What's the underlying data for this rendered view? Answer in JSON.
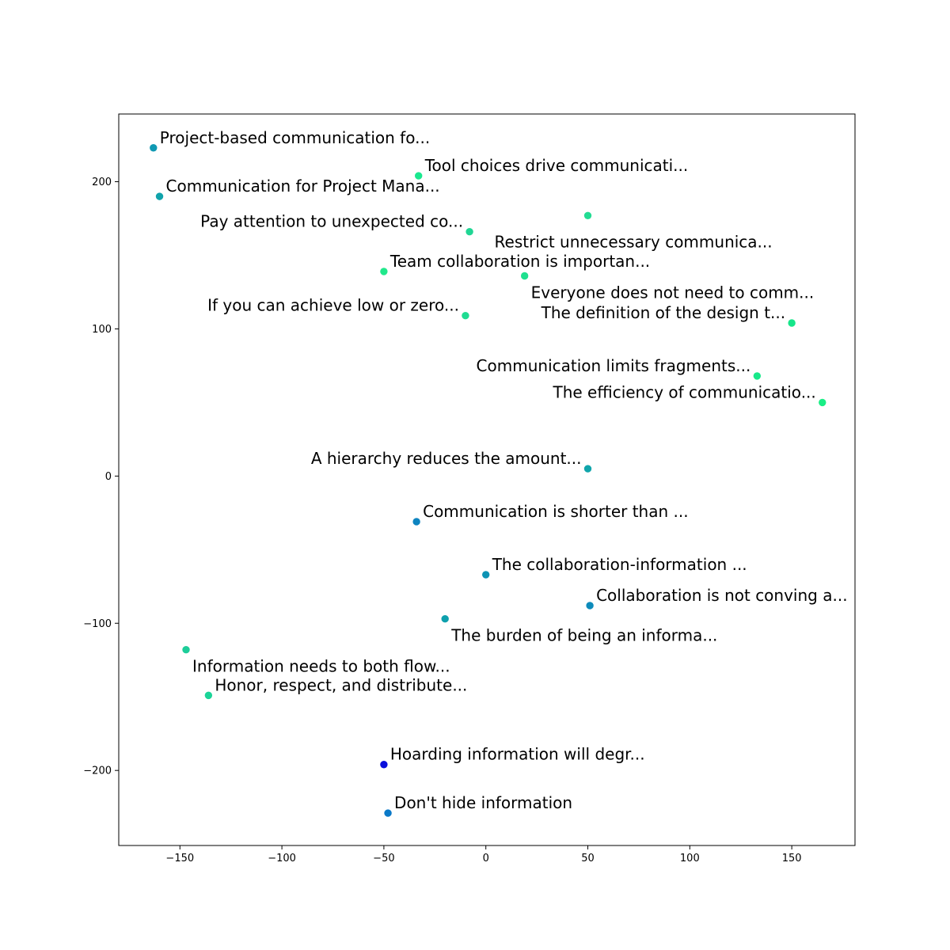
{
  "chart_data": {
    "type": "scatter",
    "title": "",
    "xlabel": "",
    "ylabel": "",
    "xlim": [
      -180,
      181
    ],
    "ylim": [
      -251,
      246
    ],
    "grid": false,
    "legend": "none",
    "x_ticks": [
      -150,
      -100,
      -50,
      0,
      50,
      100,
      150
    ],
    "y_ticks": [
      -200,
      -100,
      0,
      100,
      200
    ],
    "points": [
      {
        "x": -163,
        "y": 223,
        "label": "Project-based communication fo...",
        "color": "#1099b3",
        "label_side": "right"
      },
      {
        "x": -160,
        "y": 190,
        "label": "Communication for Project Mana...",
        "color": "#10a3ab",
        "label_side": "right"
      },
      {
        "x": -33,
        "y": 204,
        "label": "Tool choices drive communicati...",
        "color": "#1ae88f",
        "label_side": "right"
      },
      {
        "x": 50,
        "y": 177,
        "label": "Restrict unnecessary communica...",
        "color": "#23dc93",
        "label_side": "below-left"
      },
      {
        "x": -8,
        "y": 166,
        "label": "Pay attention to unexpected co...",
        "color": "#20d694",
        "label_side": "left"
      },
      {
        "x": -50,
        "y": 139,
        "label": "Team collaboration is importan...",
        "color": "#20e88b",
        "label_side": "right"
      },
      {
        "x": 19,
        "y": 136,
        "label": "Everyone does not need to comm...",
        "color": "#1fe08f",
        "label_side": "below-right"
      },
      {
        "x": -10,
        "y": 109,
        "label": "If you can achieve low or zero...",
        "color": "#1fdc92",
        "label_side": "left"
      },
      {
        "x": 150,
        "y": 104,
        "label": "The definition of the design t...",
        "color": "#16e68a",
        "label_side": "left"
      },
      {
        "x": 133,
        "y": 68,
        "label": "Communication limits fragments...",
        "color": "#18e88a",
        "label_side": "left"
      },
      {
        "x": 165,
        "y": 50,
        "label": "The efficiency of communicatio...",
        "color": "#1aee86",
        "label_side": "left"
      },
      {
        "x": 50,
        "y": 5,
        "label": "A hierarchy reduces the amount...",
        "color": "#10a5ab",
        "label_side": "left"
      },
      {
        "x": -34,
        "y": -31,
        "label": "Communication is shorter than ...",
        "color": "#0e84c0",
        "label_side": "right"
      },
      {
        "x": 0,
        "y": -67,
        "label": "The collaboration-information ...",
        "color": "#0e93b4",
        "label_side": "right"
      },
      {
        "x": 51,
        "y": -88,
        "label": "Collaboration is not conving a...",
        "color": "#0d8bbb",
        "label_side": "right"
      },
      {
        "x": -20,
        "y": -97,
        "label": "The burden of being an informa...",
        "color": "#0ea0ad",
        "label_side": "below-right"
      },
      {
        "x": -147,
        "y": -118,
        "label": "Information needs to both flow...",
        "color": "#1dcd99",
        "label_side": "below-right"
      },
      {
        "x": -136,
        "y": -149,
        "label": "Honor, respect, and distribute...",
        "color": "#1bd498",
        "label_side": "right"
      },
      {
        "x": -50,
        "y": -196,
        "label": "Hoarding information will degr...",
        "color": "#0a0fdc",
        "label_side": "right"
      },
      {
        "x": -48,
        "y": -229,
        "label": "Don't hide information",
        "color": "#0a79c8",
        "label_side": "right"
      }
    ]
  }
}
